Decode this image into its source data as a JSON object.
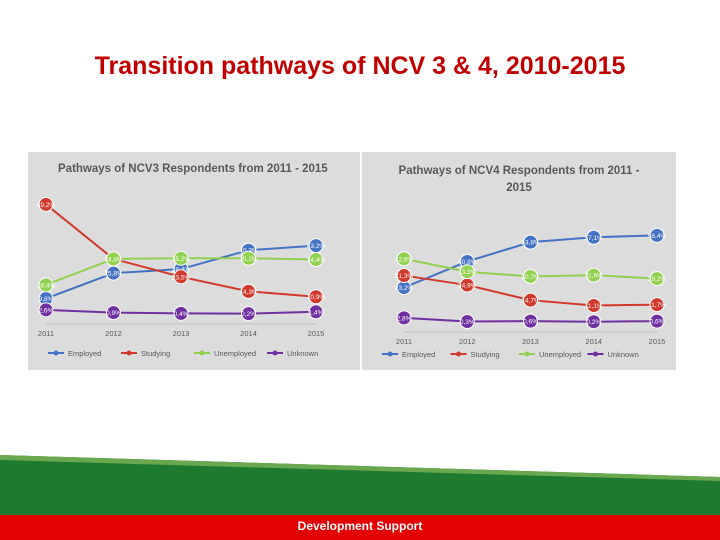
{
  "slide": {
    "title": "Transition pathways of NCV 3 & 4, 2010-2015",
    "footer": "Development Support"
  },
  "colors": {
    "title": "#c00000",
    "employed": "#4472c4",
    "studying": "#d0392b",
    "unemployed": "#92d050",
    "unknown": "#7030a0",
    "footer_red": "#e30000",
    "footer_green": "#1d7a2e",
    "panel_bg": "#dcdcdc"
  },
  "chart_data": [
    {
      "type": "line",
      "title": "Pathways of NCV3 Respondents from 2011 - 2015",
      "x": [
        "2011",
        "2012",
        "2013",
        "2014",
        "2015"
      ],
      "xlabel": "",
      "ylabel": "",
      "grid": false,
      "legend": "bottom",
      "series": [
        {
          "name": "Employed",
          "color": "#4472c4",
          "values": [
            9.8,
            25.8,
            28.4,
            40.3,
            43.2
          ],
          "labels": [
            "9,8%",
            "25,8%",
            "28,4%",
            "40,3%",
            "43,2%"
          ]
        },
        {
          "name": "Studying",
          "color": "#d0392b",
          "values": [
            69.2,
            34.8,
            23.5,
            14.3,
            10.9
          ],
          "labels": [
            "69,2%",
            "34,8%",
            "23,5%",
            "14,3%",
            "10,9%"
          ]
        },
        {
          "name": "Unemployed",
          "color": "#92d050",
          "values": [
            18.4,
            34.8,
            35.2,
            35.2,
            34.4
          ],
          "labels": [
            "18,4%",
            "34,8%",
            "35,2%",
            "35,2%",
            "34,4%"
          ]
        },
        {
          "name": "Unknown",
          "color": "#7030a0",
          "values": [
            2.6,
            0.9,
            0.4,
            0.2,
            1.4
          ],
          "labels": [
            "2,6%",
            "0,9%",
            "0,4%",
            "0,2%",
            "1,4%"
          ]
        }
      ]
    },
    {
      "type": "line",
      "title": "Pathways of NCV4 Respondents from 2011 - 2015",
      "x": [
        "2011",
        "2012",
        "2013",
        "2014",
        "2015"
      ],
      "xlabel": "",
      "ylabel": "",
      "grid": false,
      "legend": "bottom",
      "series": [
        {
          "name": "Employed",
          "color": "#4472c4",
          "values": [
            23.2,
            40.8,
            53.8,
            57.1,
            58.4
          ],
          "labels": [
            "23,2%",
            "40,8%",
            "53,8%",
            "57,1%",
            "58,4%"
          ]
        },
        {
          "name": "Studying",
          "color": "#d0392b",
          "values": [
            31.3,
            24.9,
            14.7,
            11.1,
            11.7
          ],
          "labels": [
            "31,3%",
            "24,9%",
            "14,7%",
            "11,1%",
            "11,7%"
          ]
        },
        {
          "name": "Unemployed",
          "color": "#92d050",
          "values": [
            42.6,
            33.9,
            30.7,
            31.6,
            29.2
          ],
          "labels": [
            "42,6%",
            "33,9%",
            "30,7%",
            "31,6%",
            "29,2%"
          ]
        },
        {
          "name": "Unknown",
          "color": "#7030a0",
          "values": [
            2.8,
            0.3,
            0.6,
            0.2,
            0.6
          ],
          "labels": [
            "2,8%",
            "0,3%",
            "0,6%",
            "0,2%",
            "0,6%"
          ]
        }
      ]
    }
  ]
}
